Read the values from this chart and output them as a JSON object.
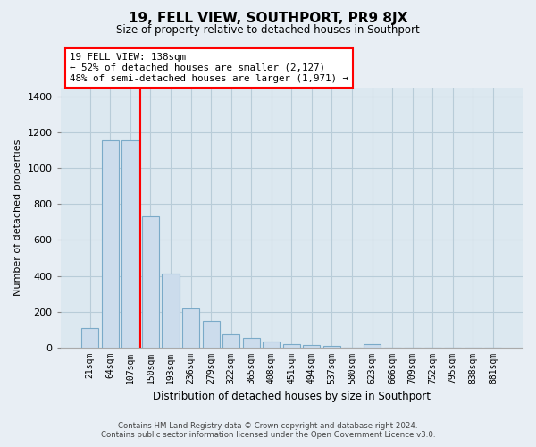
{
  "title": "19, FELL VIEW, SOUTHPORT, PR9 8JX",
  "subtitle": "Size of property relative to detached houses in Southport",
  "xlabel": "Distribution of detached houses by size in Southport",
  "ylabel": "Number of detached properties",
  "bar_labels": [
    "21sqm",
    "64sqm",
    "107sqm",
    "150sqm",
    "193sqm",
    "236sqm",
    "279sqm",
    "322sqm",
    "365sqm",
    "408sqm",
    "451sqm",
    "494sqm",
    "537sqm",
    "580sqm",
    "623sqm",
    "666sqm",
    "709sqm",
    "752sqm",
    "795sqm",
    "838sqm",
    "881sqm"
  ],
  "bar_values": [
    108,
    1155,
    1155,
    730,
    415,
    220,
    148,
    73,
    52,
    35,
    20,
    15,
    10,
    0,
    18,
    0,
    0,
    0,
    0,
    0,
    0
  ],
  "bar_color": "#ccdcec",
  "bar_edge_color": "#7aaac8",
  "red_line_index": 2.5,
  "annotation_title": "19 FELL VIEW: 138sqm",
  "annotation_line1": "← 52% of detached houses are smaller (2,127)",
  "annotation_line2": "48% of semi-detached houses are larger (1,971) →",
  "ylim": [
    0,
    1450
  ],
  "yticks": [
    0,
    200,
    400,
    600,
    800,
    1000,
    1200,
    1400
  ],
  "footer_line1": "Contains HM Land Registry data © Crown copyright and database right 2024.",
  "footer_line2": "Contains public sector information licensed under the Open Government Licence v3.0.",
  "background_color": "#e8eef4",
  "plot_bg_color": "#dce8f0",
  "grid_color": "#b8ccd8"
}
